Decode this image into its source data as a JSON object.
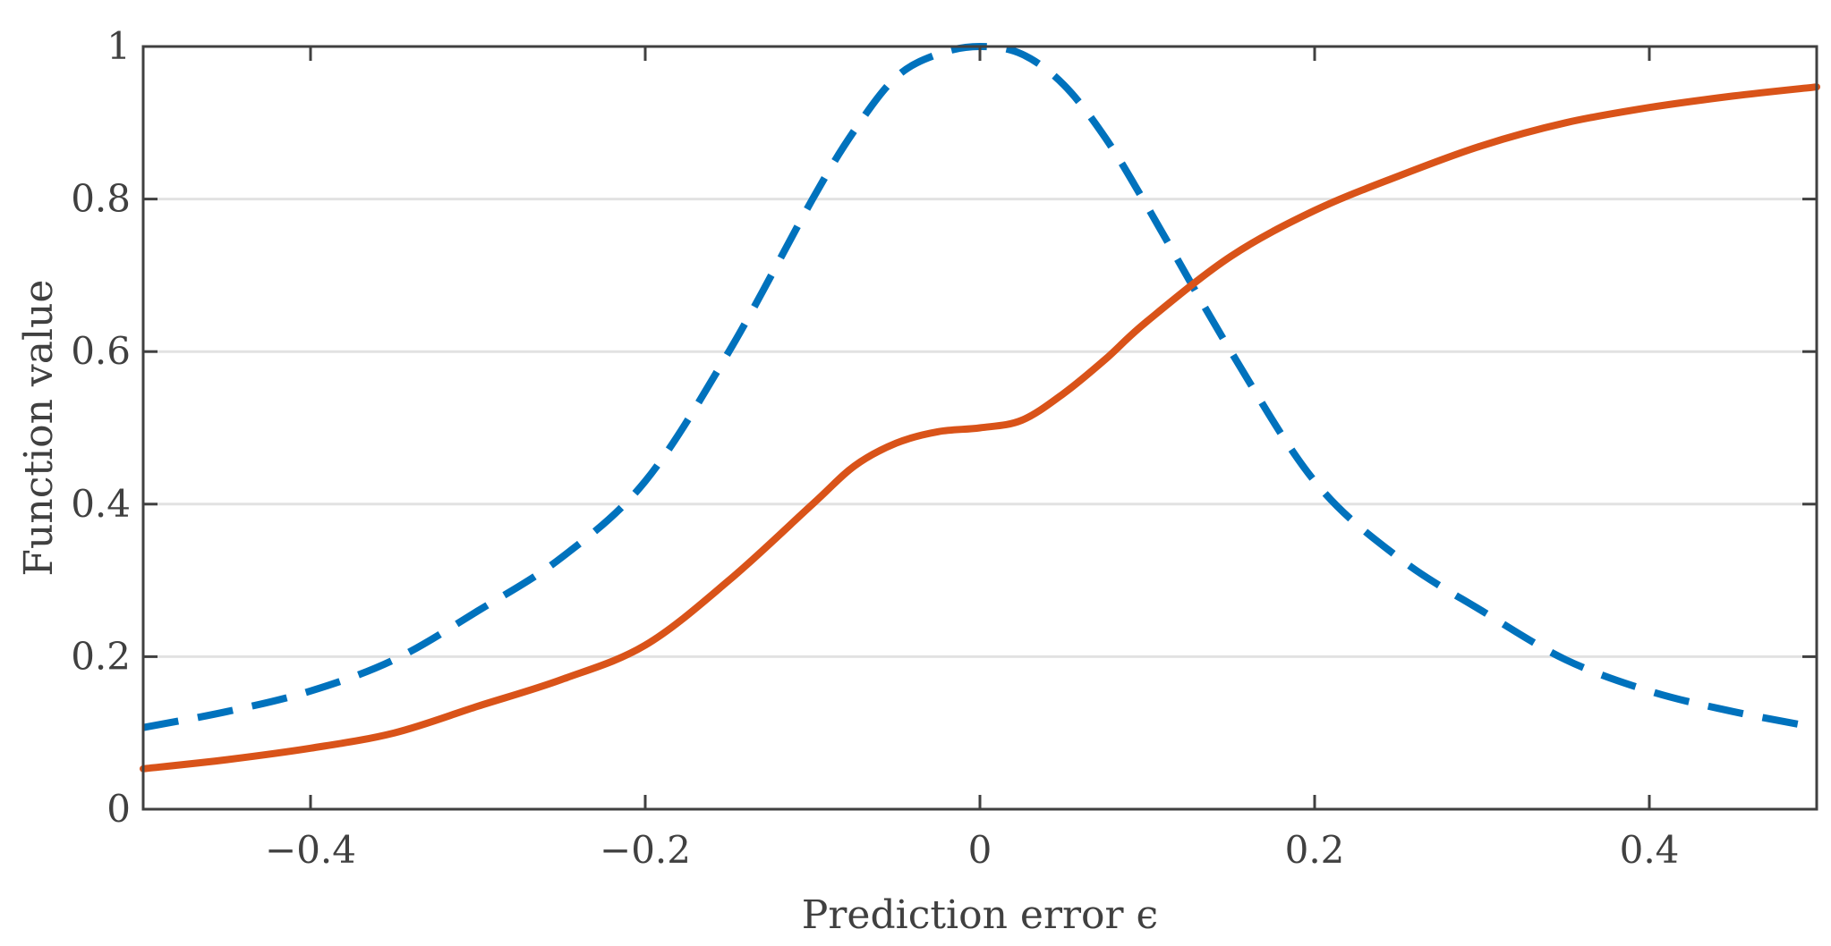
{
  "chart_data": {
    "type": "line",
    "xlabel": "Prediction error ϵ",
    "ylabel": "Function value",
    "xlim": [
      -0.5,
      0.5
    ],
    "ylim": [
      0,
      1
    ],
    "grid": "horizontal",
    "xticks": [
      -0.4,
      -0.2,
      0,
      0.2,
      0.4
    ],
    "xtick_labels": [
      "−0.4",
      "−0.2",
      "0",
      "0.2",
      "0.4"
    ],
    "yticks": [
      0,
      0.2,
      0.4,
      0.6,
      0.8,
      1
    ],
    "ytick_labels": [
      "0",
      "0.2",
      "0.4",
      "0.6",
      "0.8",
      "1"
    ],
    "series": [
      {
        "style": "dashed",
        "color": "#0072BD",
        "x": [
          -0.5,
          -0.45,
          -0.4,
          -0.35,
          -0.3,
          -0.25,
          -0.2,
          -0.15,
          -0.1,
          -0.075,
          -0.05,
          -0.025,
          0,
          0.025,
          0.05,
          0.075,
          0.1,
          0.15,
          0.2,
          0.25,
          0.3,
          0.35,
          0.4,
          0.45,
          0.5
        ],
        "y": [
          0.107,
          0.128,
          0.155,
          0.196,
          0.26,
          0.33,
          0.43,
          0.6,
          0.8,
          0.89,
          0.96,
          0.99,
          1.0,
          0.99,
          0.95,
          0.88,
          0.79,
          0.6,
          0.43,
          0.33,
          0.26,
          0.196,
          0.155,
          0.128,
          0.107
        ]
      },
      {
        "style": "solid",
        "color": "#D95319",
        "x": [
          -0.5,
          -0.45,
          -0.4,
          -0.35,
          -0.3,
          -0.25,
          -0.2,
          -0.15,
          -0.1,
          -0.075,
          -0.05,
          -0.025,
          0,
          0.025,
          0.05,
          0.075,
          0.1,
          0.15,
          0.2,
          0.25,
          0.3,
          0.35,
          0.4,
          0.45,
          0.5
        ],
        "y": [
          0.053,
          0.065,
          0.08,
          0.1,
          0.135,
          0.17,
          0.215,
          0.3,
          0.4,
          0.45,
          0.48,
          0.495,
          0.5,
          0.51,
          0.545,
          0.59,
          0.64,
          0.725,
          0.785,
          0.83,
          0.87,
          0.9,
          0.92,
          0.935,
          0.947
        ]
      }
    ]
  }
}
